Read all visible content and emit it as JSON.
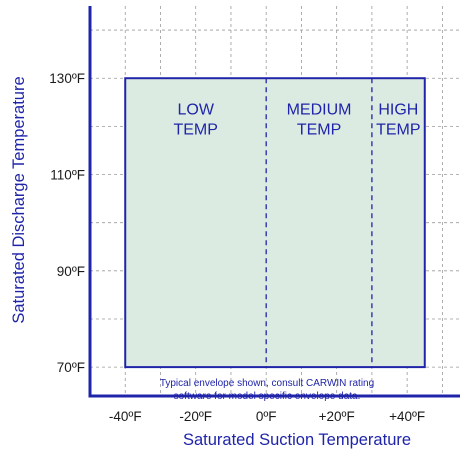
{
  "chart_data": {
    "type": "area",
    "xlabel": "Saturated Suction Temperature",
    "ylabel": "Saturated Discharge Temperature",
    "xlim": [
      -50,
      55
    ],
    "ylim": [
      64,
      145
    ],
    "x_ticks": [
      {
        "value": -40,
        "label": "-40ºF"
      },
      {
        "value": -20,
        "label": "-20ºF"
      },
      {
        "value": 0,
        "label": "0ºF"
      },
      {
        "value": 20,
        "label": "+20ºF"
      },
      {
        "value": 40,
        "label": "+40ºF"
      }
    ],
    "y_ticks": [
      {
        "value": 70,
        "label": "70ºF"
      },
      {
        "value": 90,
        "label": "90ºF"
      },
      {
        "value": 110,
        "label": "110ºF"
      },
      {
        "value": 130,
        "label": "130ºF"
      }
    ],
    "envelope": {
      "x_min": -40,
      "x_max": 45,
      "y_min": 70,
      "y_max": 130
    },
    "region_dividers": [
      0,
      30
    ],
    "regions": [
      {
        "line1": "LOW",
        "line2": "TEMP",
        "x_center": -20
      },
      {
        "line1": "MEDIUM",
        "line2": "TEMP",
        "x_center": 15
      },
      {
        "line1": "HIGH",
        "line2": "TEMP",
        "x_center": 37.5
      }
    ],
    "region_label_y": 122.5,
    "note": {
      "line1": "Typical envelope shown, consult CARWIN rating",
      "line2": "software for model specific envelope data."
    },
    "grid": true,
    "colors": {
      "axis": "#1f24a8",
      "envelope_stroke": "#1f24a8",
      "envelope_fill": "#dcebe2",
      "grid": "#9a9a9a",
      "text": "#1f24a8"
    }
  }
}
